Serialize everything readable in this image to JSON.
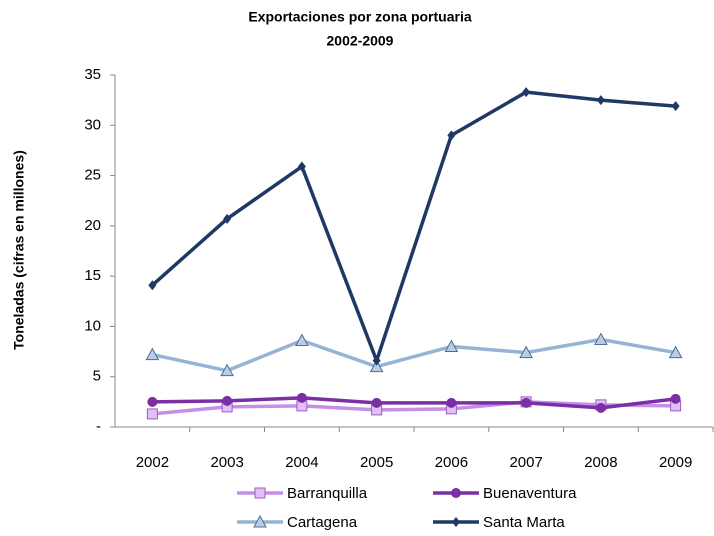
{
  "chart_data": {
    "type": "line",
    "title": "Exportaciones por zona portuaria",
    "subtitle": "2002-2009",
    "y_label": "Toneladas  (cifras en millones)",
    "categories": [
      "2002",
      "2003",
      "2004",
      "2005",
      "2006",
      "2007",
      "2008",
      "2009"
    ],
    "series": [
      {
        "name": "Barranquilla",
        "color": "#c58fe6",
        "marker": "square",
        "values": [
          1.3,
          2.0,
          2.1,
          1.7,
          1.8,
          2.5,
          2.2,
          2.1
        ]
      },
      {
        "name": "Buenaventura",
        "color": "#7a2fa5",
        "marker": "circle",
        "values": [
          2.5,
          2.6,
          2.9,
          2.4,
          2.4,
          2.4,
          1.9,
          2.8
        ]
      },
      {
        "name": "Cartagena",
        "color": "#95b3d7",
        "marker": "triangle",
        "values": [
          7.2,
          5.6,
          8.6,
          6.0,
          8.0,
          7.4,
          8.7,
          7.4
        ]
      },
      {
        "name": "Santa Marta",
        "color": "#1f3864",
        "marker": "diamond",
        "values": [
          14.1,
          20.7,
          25.9,
          6.6,
          29.0,
          33.3,
          32.5,
          31.9
        ]
      }
    ],
    "ylim": [
      0,
      35
    ],
    "yticks": [
      {
        "value": 0,
        "label": "-"
      },
      5,
      10,
      15,
      20,
      25,
      30,
      35
    ],
    "grid": false,
    "legend": "bottom"
  }
}
